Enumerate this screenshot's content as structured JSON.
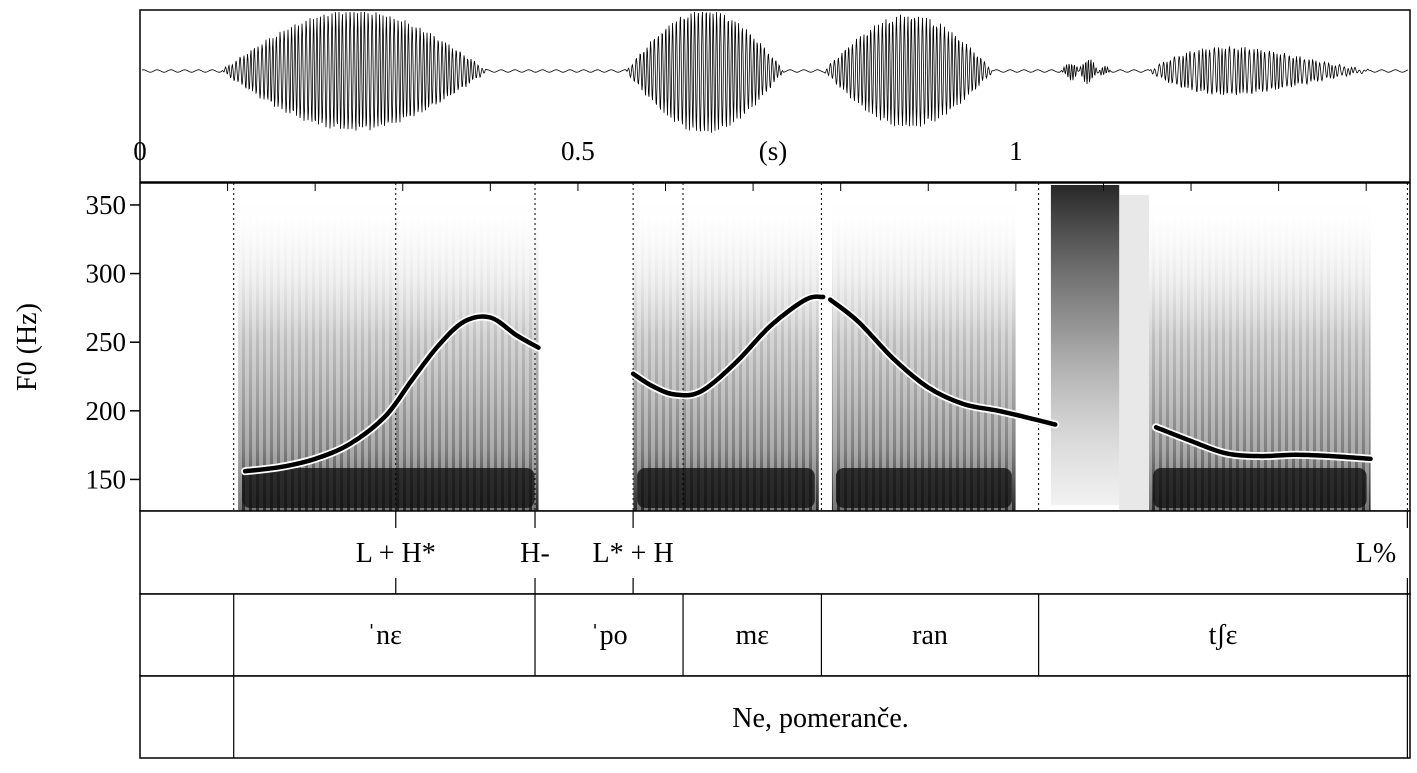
{
  "time_axis": {
    "unit_label": "(s)",
    "ticks": [
      {
        "label": "0",
        "value": 0
      },
      {
        "label": "0.5",
        "value": 0.5
      },
      {
        "label": "1",
        "value": 1
      }
    ],
    "range": [
      0,
      1.45
    ]
  },
  "f0_axis": {
    "label": "F0 (Hz)",
    "range": [
      127,
      366
    ],
    "ticks": [
      {
        "label": "150",
        "value": 150
      },
      {
        "label": "200",
        "value": 200
      },
      {
        "label": "250",
        "value": 250
      },
      {
        "label": "300",
        "value": 300
      },
      {
        "label": "350",
        "value": 350
      }
    ]
  },
  "chart_data": {
    "type": "line",
    "x_unit": "s",
    "y_unit": "Hz",
    "ylim": [
      127,
      366
    ],
    "xlim": [
      0,
      1.45
    ],
    "series": [
      {
        "points": [
          [
            0.12,
            156
          ],
          [
            0.16,
            159
          ],
          [
            0.2,
            165
          ],
          [
            0.24,
            176
          ],
          [
            0.28,
            196
          ],
          [
            0.31,
            222
          ],
          [
            0.34,
            247
          ],
          [
            0.37,
            265
          ],
          [
            0.4,
            268
          ],
          [
            0.43,
            255
          ],
          [
            0.455,
            246
          ]
        ]
      },
      {
        "points": [
          [
            0.563,
            227
          ],
          [
            0.585,
            218
          ],
          [
            0.61,
            212
          ],
          [
            0.64,
            214
          ],
          [
            0.68,
            235
          ],
          [
            0.72,
            262
          ],
          [
            0.76,
            281
          ],
          [
            0.78,
            283
          ]
        ]
      },
      {
        "points": [
          [
            0.788,
            281
          ],
          [
            0.82,
            265
          ],
          [
            0.86,
            238
          ],
          [
            0.9,
            217
          ],
          [
            0.94,
            205
          ],
          [
            0.98,
            200
          ],
          [
            1.02,
            194
          ],
          [
            1.045,
            190
          ]
        ]
      },
      {
        "points": [
          [
            1.16,
            188
          ],
          [
            1.2,
            178
          ],
          [
            1.24,
            169
          ],
          [
            1.28,
            167
          ],
          [
            1.32,
            168
          ],
          [
            1.36,
            167
          ],
          [
            1.405,
            165
          ]
        ]
      }
    ]
  },
  "tones": {
    "boundaries_s": [
      0.292,
      0.451,
      0.563,
      1.447
    ],
    "labels": [
      {
        "text": "L + H*",
        "at_s": 0.292
      },
      {
        "text": "H-",
        "at_s": 0.451
      },
      {
        "text": "L* + H",
        "at_s": 0.563
      },
      {
        "text": "L%",
        "at_s": 1.447
      }
    ]
  },
  "syllables": {
    "boundaries_s": [
      0.107,
      0.451,
      0.62,
      0.778,
      1.026,
      1.447
    ],
    "items": [
      {
        "text": "ˈnɛ",
        "start_s": 0.107,
        "end_s": 0.451
      },
      {
        "text": "ˈpo",
        "start_s": 0.451,
        "end_s": 0.62
      },
      {
        "text": "mɛ",
        "start_s": 0.62,
        "end_s": 0.778
      },
      {
        "text": "ran",
        "start_s": 0.778,
        "end_s": 1.026
      },
      {
        "text": "tʃɛ",
        "start_s": 1.026,
        "end_s": 1.447
      }
    ]
  },
  "sentence": {
    "boundaries_s": [
      0.107,
      1.447
    ],
    "text": "Ne, pomeranče.",
    "start_s": 0.107,
    "end_s": 1.447
  },
  "spectrogram_lines_s": [
    0.107,
    0.292,
    0.451,
    0.563,
    0.62,
    0.778,
    1.026,
    1.447
  ],
  "colors": {
    "ink": "#000000",
    "background": "#ffffff"
  }
}
